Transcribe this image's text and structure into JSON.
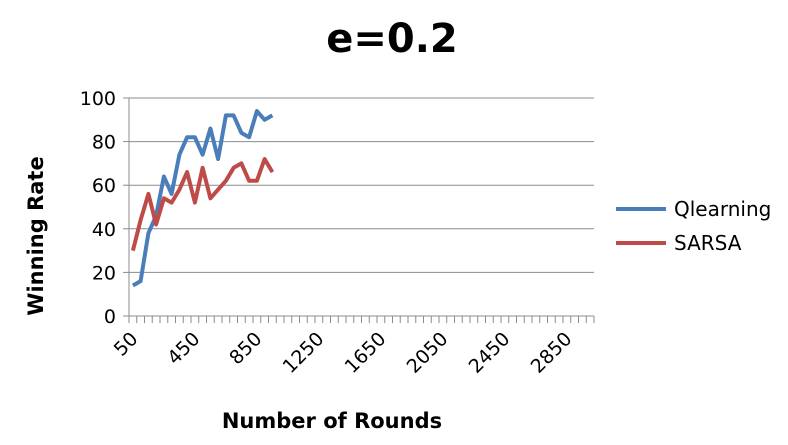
{
  "chart_data": {
    "type": "line",
    "title": "e=0.2",
    "xlabel": "Number of Rounds",
    "ylabel": "Winning Rate",
    "ylim": [
      0,
      100
    ],
    "yticks": [
      "0",
      "20",
      "40",
      "60",
      "80",
      "100"
    ],
    "xticks": [
      "50",
      "450",
      "850",
      "1250",
      "1650",
      "2050",
      "2450",
      "2850"
    ],
    "x_categories_start": 50,
    "x_categories_step": 50,
    "x_categories_count": 60,
    "grid": "horizontal",
    "legend": "right",
    "series": [
      {
        "name": "Qlearning",
        "color": "#4a7ebb",
        "x": [
          50,
          100,
          150,
          200,
          250,
          300,
          350,
          400,
          450,
          500,
          550,
          600,
          650,
          700,
          750,
          800,
          850,
          900,
          950,
          1000
        ],
        "values": [
          14,
          16,
          38,
          46,
          64,
          56,
          74,
          82,
          82,
          74,
          86,
          72,
          92,
          92,
          84,
          82,
          94,
          90,
          92,
          null
        ]
      },
      {
        "name": "SARSA",
        "color": "#be4b48",
        "x": [
          50,
          100,
          150,
          200,
          250,
          300,
          350,
          400,
          450,
          500,
          550,
          600,
          650,
          700,
          750,
          800,
          850,
          900,
          950,
          1000
        ],
        "values": [
          30,
          44,
          56,
          42,
          54,
          52,
          58,
          66,
          52,
          68,
          54,
          58,
          62,
          68,
          70,
          62,
          62,
          72,
          66,
          null
        ]
      }
    ]
  }
}
